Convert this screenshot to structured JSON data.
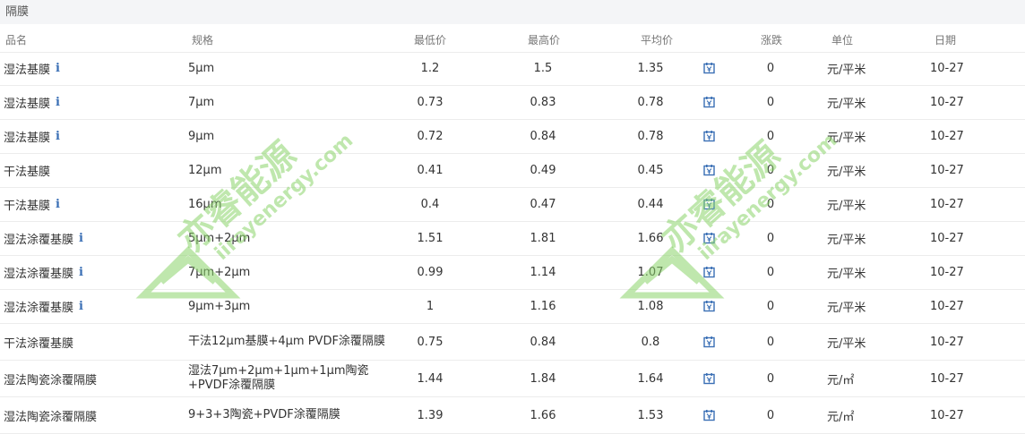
{
  "section": {
    "title": "隔膜"
  },
  "columns": {
    "name": "品名",
    "spec": "规格",
    "min": "最低价",
    "max": "最高价",
    "avg": "平均价",
    "change": "涨跌",
    "unit": "单位",
    "date": "日期"
  },
  "rows": [
    {
      "name": "湿法基膜",
      "info": "i",
      "spec": "5μm",
      "min": "1.2",
      "max": "1.5",
      "avg": "1.35",
      "change": "0",
      "unit": "元/平米",
      "date": "10-27"
    },
    {
      "name": "湿法基膜",
      "info": "i",
      "spec": "7μm",
      "min": "0.73",
      "max": "0.83",
      "avg": "0.78",
      "change": "0",
      "unit": "元/平米",
      "date": "10-27"
    },
    {
      "name": "湿法基膜",
      "info": "i",
      "spec": "9μm",
      "min": "0.72",
      "max": "0.84",
      "avg": "0.78",
      "change": "0",
      "unit": "元/平米",
      "date": "10-27"
    },
    {
      "name": "干法基膜",
      "info": "",
      "spec": "12μm",
      "min": "0.41",
      "max": "0.49",
      "avg": "0.45",
      "change": "0",
      "unit": "元/平米",
      "date": "10-27"
    },
    {
      "name": "干法基膜",
      "info": "i",
      "spec": "16μm",
      "min": "0.4",
      "max": "0.47",
      "avg": "0.44",
      "change": "0",
      "unit": "元/平米",
      "date": "10-27"
    },
    {
      "name": "湿法涂覆基膜",
      "info": "i",
      "spec": "5μm+2μm",
      "min": "1.51",
      "max": "1.81",
      "avg": "1.66",
      "change": "0",
      "unit": "元/平米",
      "date": "10-27"
    },
    {
      "name": "湿法涂覆基膜",
      "info": "i",
      "spec": "7μm+2μm",
      "min": "0.99",
      "max": "1.14",
      "avg": "1.07",
      "change": "0",
      "unit": "元/平米",
      "date": "10-27"
    },
    {
      "name": "湿法涂覆基膜",
      "info": "i",
      "spec": "9μm+3μm",
      "min": "1",
      "max": "1.16",
      "avg": "1.08",
      "change": "0",
      "unit": "元/平米",
      "date": "10-27"
    },
    {
      "name": "干法涂覆基膜",
      "info": "",
      "spec": "干法12μm基膜+4μm PVDF涂覆隔膜",
      "min": "0.75",
      "max": "0.84",
      "avg": "0.8",
      "change": "0",
      "unit": "元/平米",
      "date": "10-27"
    },
    {
      "name": "湿法陶瓷涂覆隔膜",
      "info": "",
      "spec": "湿法7μm+2μm+1μm+1μm陶瓷+PVDF涂覆隔膜",
      "min": "1.44",
      "max": "1.84",
      "avg": "1.64",
      "change": "0",
      "unit": "元/㎡",
      "date": "10-27"
    },
    {
      "name": "湿法陶瓷涂覆隔膜",
      "info": "",
      "spec": "9+3+3陶瓷+PVDF涂覆隔膜",
      "min": "1.39",
      "max": "1.66",
      "avg": "1.53",
      "change": "0",
      "unit": "元/㎡",
      "date": "10-27"
    }
  ],
  "watermark": {
    "brand": "亦睿能源",
    "site": "iirayenergy.com"
  },
  "colors": {
    "accent": "#3a6fb5",
    "watermark": "#8bd46b"
  },
  "icons": {
    "trend": "price-chart-icon"
  }
}
